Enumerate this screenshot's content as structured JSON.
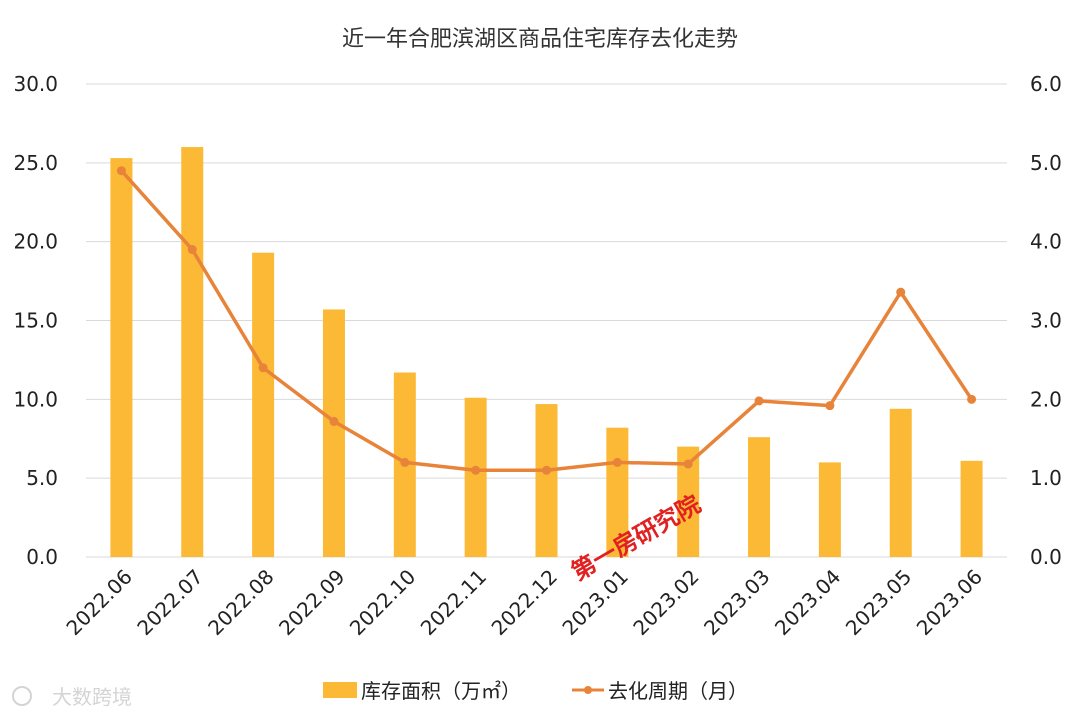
{
  "chart_data": {
    "type": "bar+line",
    "title": "近一年合肥滨湖区商品住宅库存去化走势",
    "categories": [
      "2022.06",
      "2022.07",
      "2022.08",
      "2022.09",
      "2022.10",
      "2022.11",
      "2022.12",
      "2023.01",
      "2023.02",
      "2023.03",
      "2023.04",
      "2023.05",
      "2023.06"
    ],
    "series": [
      {
        "name": "库存面积（万㎡）",
        "type": "bar",
        "axis": "left",
        "color": "#FBB935",
        "values": [
          25.3,
          26.0,
          19.3,
          15.7,
          11.7,
          10.1,
          9.7,
          8.2,
          7.0,
          7.6,
          6.0,
          9.4,
          6.1
        ]
      },
      {
        "name": "去化周期（月）",
        "type": "line",
        "axis": "right",
        "color": "#E8833A",
        "values": [
          4.9,
          3.9,
          2.4,
          1.72,
          1.2,
          1.1,
          1.1,
          1.2,
          1.18,
          1.98,
          1.92,
          3.36,
          2.0
        ]
      }
    ],
    "left_axis": {
      "range": [
        0,
        30
      ],
      "ticks": [
        "0.0",
        "5.0",
        "10.0",
        "15.0",
        "20.0",
        "25.0",
        "30.0"
      ]
    },
    "right_axis": {
      "range": [
        0,
        6
      ],
      "ticks": [
        "0.0",
        "1.0",
        "2.0",
        "3.0",
        "4.0",
        "5.0",
        "6.0"
      ]
    },
    "grid": true,
    "legend_position": "bottom"
  },
  "watermark": {
    "center_text": "第一房研究院",
    "corner_text": "大数跨境"
  },
  "colors": {
    "grid": "#d9d9d9",
    "bar": "#FBB935",
    "line": "#E8833A",
    "watermark": "#e12121"
  }
}
